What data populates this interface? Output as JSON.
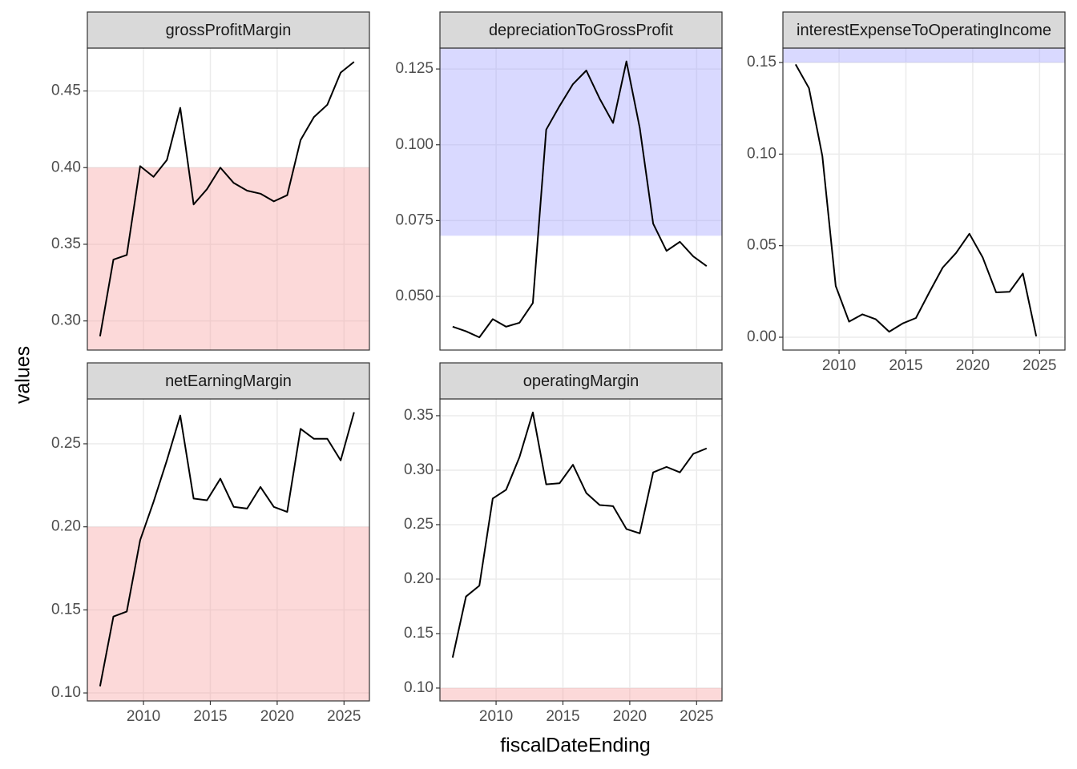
{
  "x_label": "fiscalDateEnding",
  "y_label": "values",
  "chart_data": [
    {
      "type": "line",
      "title": "grossProfitMargin",
      "color": "#000000",
      "x": [
        2006.75,
        2007.75,
        2008.75,
        2009.75,
        2010.75,
        2011.75,
        2012.75,
        2013.75,
        2014.75,
        2015.75,
        2016.75,
        2017.75,
        2018.75,
        2019.75,
        2020.75,
        2021.75,
        2022.75,
        2023.75,
        2024.75,
        2025.75
      ],
      "values": [
        0.29,
        0.34,
        0.343,
        0.401,
        0.394,
        0.405,
        0.439,
        0.376,
        0.386,
        0.4,
        0.39,
        0.385,
        0.383,
        0.378,
        0.382,
        0.418,
        0.433,
        0.441,
        0.462,
        0.469
      ],
      "xlim": [
        2005.8,
        2026.9
      ],
      "xticks": [
        2010,
        2015,
        2020,
        2025
      ],
      "ylim": [
        0.281,
        0.478
      ],
      "yticks": [
        {
          "value": 0.3,
          "label": "0.30"
        },
        0.35,
        {
          "value": 0.4,
          "label": "0.40"
        },
        0.45
      ],
      "grid": true,
      "threshold": 0.4,
      "shade": "below",
      "shade_color": "#f8a0a0"
    },
    {
      "type": "line",
      "title": "depreciationToGrossProfit",
      "color": "#000000",
      "x": [
        2006.75,
        2007.75,
        2008.75,
        2009.75,
        2010.75,
        2011.75,
        2012.75,
        2013.75,
        2014.75,
        2015.75,
        2016.75,
        2017.75,
        2018.75,
        2019.75,
        2020.75,
        2021.75,
        2022.75,
        2023.75,
        2024.75,
        2025.75
      ],
      "values": [
        0.04,
        0.0385,
        0.0365,
        0.0425,
        0.04,
        0.0413,
        0.0478,
        0.105,
        0.1128,
        0.12,
        0.1245,
        0.1152,
        0.1072,
        0.1275,
        0.1055,
        0.074,
        0.065,
        0.068,
        0.0632,
        0.06
      ],
      "xlim": [
        2005.8,
        2026.9
      ],
      "xticks": [
        2010,
        2015,
        2020,
        2025
      ],
      "ylim": [
        0.0323,
        0.1319
      ],
      "yticks": [
        {
          "value": 0.05,
          "label": "0.050"
        },
        0.075,
        {
          "value": 0.1,
          "label": "0.100"
        },
        0.125
      ],
      "grid": true,
      "threshold": 0.07,
      "shade": "above",
      "shade_color": "#a0a0ff"
    },
    {
      "type": "line",
      "title": "interestExpenseToOperatingIncome",
      "color": "#000000",
      "x": [
        2006.75,
        2007.75,
        2008.75,
        2009.75,
        2010.75,
        2011.75,
        2012.75,
        2013.75,
        2014.75,
        2015.75,
        2016.75,
        2017.75,
        2018.75,
        2019.75,
        2020.75,
        2021.75,
        2022.75,
        2023.75,
        2024.75
      ],
      "values": [
        0.149,
        0.136,
        0.099,
        0.028,
        0.0085,
        0.0125,
        0.0098,
        0.003,
        0.0075,
        0.0105,
        0.0245,
        0.038,
        0.046,
        0.0565,
        0.0435,
        0.0245,
        0.0248,
        0.0348,
        0.0005
      ],
      "xlim": [
        2005.8,
        2026.9
      ],
      "xticks": [
        2010,
        2015,
        2020,
        2025
      ],
      "ylim": [
        -0.007,
        0.1579
      ],
      "yticks": [
        {
          "value": 0,
          "label": "0.00"
        },
        0.05,
        {
          "value": 0.1,
          "label": "0.10"
        },
        0.15
      ],
      "grid": true,
      "threshold": 0.15,
      "shade": "above",
      "shade_color": "#a0a0ff"
    },
    {
      "type": "line",
      "title": "netEarningMargin",
      "color": "#000000",
      "x": [
        2006.75,
        2007.75,
        2008.75,
        2009.75,
        2010.75,
        2011.75,
        2012.75,
        2013.75,
        2014.75,
        2015.75,
        2016.75,
        2017.75,
        2018.75,
        2019.75,
        2020.75,
        2021.75,
        2022.75,
        2023.75,
        2024.75,
        2025.75
      ],
      "values": [
        0.104,
        0.146,
        0.149,
        0.192,
        0.215,
        0.24,
        0.267,
        0.217,
        0.216,
        0.229,
        0.212,
        0.211,
        0.224,
        0.212,
        0.209,
        0.259,
        0.253,
        0.253,
        0.24,
        0.269
      ],
      "xlim": [
        2005.8,
        2026.9
      ],
      "xticks": [
        2010,
        2015,
        2020,
        2025
      ],
      "ylim": [
        0.0952,
        0.277
      ],
      "yticks": [
        {
          "value": 0.1,
          "label": "0.10"
        },
        0.15,
        {
          "value": 0.2,
          "label": "0.20"
        },
        0.25
      ],
      "grid": true,
      "threshold": 0.2,
      "shade": "below",
      "shade_color": "#f8a0a0"
    },
    {
      "type": "line",
      "title": "operatingMargin",
      "color": "#000000",
      "x": [
        2006.75,
        2007.75,
        2008.75,
        2009.75,
        2010.75,
        2011.75,
        2012.75,
        2013.75,
        2014.75,
        2015.75,
        2016.75,
        2017.75,
        2018.75,
        2019.75,
        2020.75,
        2021.75,
        2022.75,
        2023.75,
        2024.75,
        2025.75
      ],
      "values": [
        0.128,
        0.184,
        0.194,
        0.274,
        0.282,
        0.312,
        0.353,
        0.287,
        0.288,
        0.305,
        0.279,
        0.268,
        0.267,
        0.246,
        0.242,
        0.298,
        0.303,
        0.298,
        0.315,
        0.32
      ],
      "xlim": [
        2005.8,
        2026.9
      ],
      "xticks": [
        2010,
        2015,
        2020,
        2025
      ],
      "ylim": [
        0.0882,
        0.3654
      ],
      "yticks": [
        {
          "value": 0.1,
          "label": "0.10"
        },
        0.15,
        {
          "value": 0.2,
          "label": "0.20"
        },
        0.25,
        {
          "value": 0.3,
          "label": "0.30"
        },
        0.35
      ],
      "grid": true,
      "threshold": 0.1,
      "shade": "below",
      "shade_color": "#f8a0a0"
    }
  ]
}
